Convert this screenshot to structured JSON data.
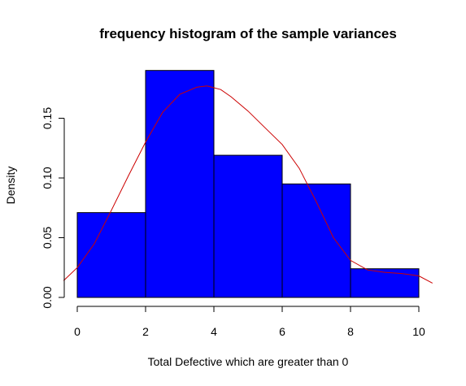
{
  "chart_data": {
    "type": "bar",
    "title": "frequency histogram of the sample variances",
    "xlabel": "Total Defective which are greater than 0",
    "ylabel": "Density",
    "bins": [
      {
        "start": 0,
        "end": 2,
        "density": 0.071
      },
      {
        "start": 2,
        "end": 4,
        "density": 0.19
      },
      {
        "start": 4,
        "end": 6,
        "density": 0.119
      },
      {
        "start": 6,
        "end": 8,
        "density": 0.095
      },
      {
        "start": 8,
        "end": 10,
        "density": 0.024
      }
    ],
    "bar_color": "#0000ff",
    "density_curve": {
      "color": "#cc0000",
      "x": [
        -0.4,
        0,
        0.5,
        1,
        1.5,
        2,
        2.5,
        3,
        3.5,
        3.8,
        4.2,
        4.5,
        5,
        5.5,
        6,
        6.5,
        7,
        7.5,
        8,
        8.5,
        9,
        9.5,
        10,
        10.4
      ],
      "y": [
        0.014,
        0.025,
        0.045,
        0.073,
        0.102,
        0.13,
        0.155,
        0.17,
        0.176,
        0.177,
        0.174,
        0.168,
        0.156,
        0.142,
        0.128,
        0.108,
        0.08,
        0.05,
        0.031,
        0.023,
        0.021,
        0.02,
        0.018,
        0.012
      ]
    },
    "x_ticks": [
      "0",
      "2",
      "4",
      "6",
      "8",
      "10"
    ],
    "y_ticks": [
      "0.00",
      "0.05",
      "0.10",
      "0.15"
    ],
    "xlim": [
      -0.4,
      10.4
    ],
    "ylim": [
      0,
      0.2
    ]
  }
}
